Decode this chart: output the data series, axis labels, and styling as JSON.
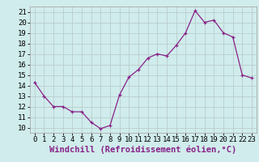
{
  "x": [
    0,
    1,
    2,
    3,
    4,
    5,
    6,
    7,
    8,
    9,
    10,
    11,
    12,
    13,
    14,
    15,
    16,
    17,
    18,
    19,
    20,
    21,
    22,
    23
  ],
  "y": [
    14.3,
    13.0,
    12.0,
    12.0,
    11.5,
    11.5,
    10.5,
    9.9,
    10.2,
    13.1,
    14.8,
    15.5,
    16.6,
    17.0,
    16.8,
    17.8,
    19.0,
    21.1,
    20.0,
    20.2,
    19.0,
    18.6,
    15.0,
    14.7
  ],
  "line_color": "#882288",
  "marker": "+",
  "bg_color": "#d0ecec",
  "grid_color": "#bbcccc",
  "xlabel": "Windchill (Refroidissement éolien,°C)",
  "ylim": [
    9.5,
    21.5
  ],
  "xlim": [
    -0.5,
    23.5
  ],
  "yticks": [
    10,
    11,
    12,
    13,
    14,
    15,
    16,
    17,
    18,
    19,
    20,
    21
  ],
  "xticks": [
    0,
    1,
    2,
    3,
    4,
    5,
    6,
    7,
    8,
    9,
    10,
    11,
    12,
    13,
    14,
    15,
    16,
    17,
    18,
    19,
    20,
    21,
    22,
    23
  ],
  "tick_fontsize": 6.5,
  "xlabel_fontsize": 7.5
}
